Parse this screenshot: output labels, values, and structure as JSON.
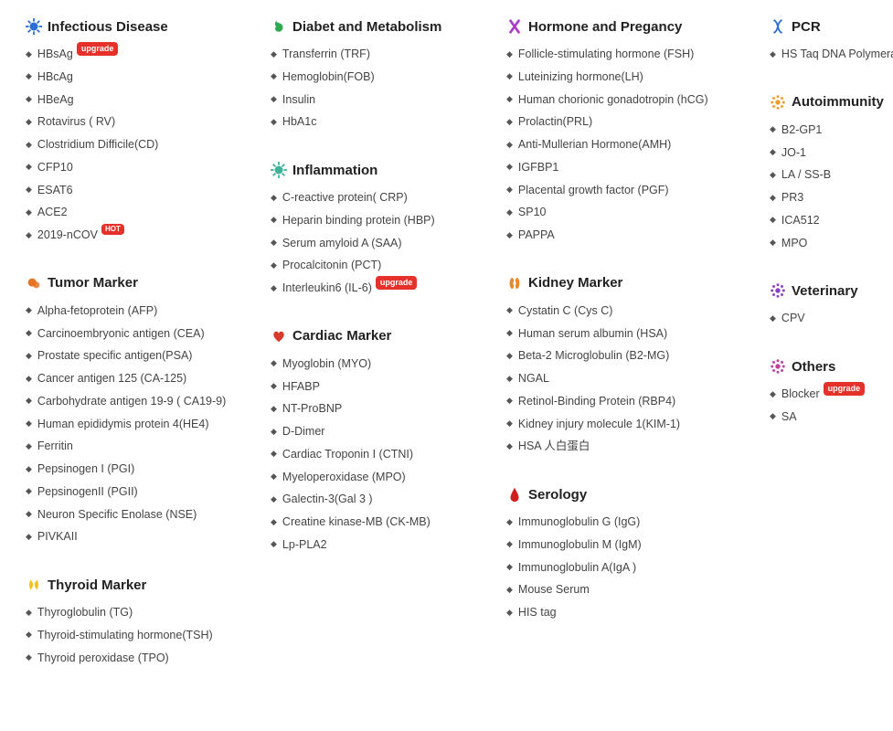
{
  "badges": {
    "upgrade": "upgrade",
    "hot": "HOT"
  },
  "columns": [
    [
      {
        "id": "infectious",
        "icon": "virus-blue",
        "title": "Infectious Disease",
        "items": [
          {
            "label": "HBsAg",
            "badge": "upgrade"
          },
          {
            "label": "HBcAg"
          },
          {
            "label": "HBeAg"
          },
          {
            "label": "Rotavirus ( RV)"
          },
          {
            "label": "Clostridium Difficile(CD)"
          },
          {
            "label": "CFP10"
          },
          {
            "label": "ESAT6"
          },
          {
            "label": "ACE2"
          },
          {
            "label": "2019-nCOV",
            "badge": "hot"
          }
        ]
      },
      {
        "id": "tumor",
        "icon": "tumor-orange",
        "title": "Tumor Marker",
        "items": [
          {
            "label": "Alpha-fetoprotein (AFP)"
          },
          {
            "label": "Carcinoembryonic antigen (CEA)"
          },
          {
            "label": "Prostate specific antigen(PSA)"
          },
          {
            "label": "Cancer antigen 125 (CA-125)"
          },
          {
            "label": "Carbohydrate antigen 19-9 ( CA19-9)"
          },
          {
            "label": "Human epididymis protein 4(HE4)"
          },
          {
            "label": "Ferritin"
          },
          {
            "label": "Pepsinogen I (PGI)"
          },
          {
            "label": "PepsinogenII (PGII)"
          },
          {
            "label": "Neuron Specific Enolase (NSE)"
          },
          {
            "label": "PIVKAII"
          }
        ]
      },
      {
        "id": "thyroid",
        "icon": "thyroid-yellow",
        "title": "Thyroid Marker",
        "items": [
          {
            "label": "Thyroglobulin (TG)"
          },
          {
            "label": "Thyroid-stimulating hormone(TSH)"
          },
          {
            "label": "Thyroid peroxidase (TPO)"
          }
        ]
      }
    ],
    [
      {
        "id": "diabet",
        "icon": "stomach-green",
        "title": "Diabet and Metabolism",
        "items": [
          {
            "label": "Transferrin (TRF)"
          },
          {
            "label": "Hemoglobin(FOB)"
          },
          {
            "label": "Insulin"
          },
          {
            "label": "HbA1c"
          }
        ]
      },
      {
        "id": "inflammation",
        "icon": "virus-teal",
        "title": "Inflammation",
        "items": [
          {
            "label": "C-reactive protein( CRP)"
          },
          {
            "label": "Heparin binding protein (HBP)"
          },
          {
            "label": "Serum amyloid A (SAA)"
          },
          {
            "label": "Procalcitonin (PCT)"
          },
          {
            "label": "Interleukin6 (IL-6)",
            "badge": "upgrade"
          }
        ]
      },
      {
        "id": "cardiac",
        "icon": "heart-red",
        "title": "Cardiac Marker",
        "items": [
          {
            "label": "Myoglobin (MYO)"
          },
          {
            "label": "HFABP"
          },
          {
            "label": "NT-ProBNP"
          },
          {
            "label": "D-Dimer"
          },
          {
            "label": "Cardiac Troponin I (CTNI)"
          },
          {
            "label": "Myeloperoxidase (MPO)"
          },
          {
            "label": "Galectin-3(Gal 3 )"
          },
          {
            "label": "Creatine kinase-MB (CK-MB)"
          },
          {
            "label": "Lp-PLA2"
          }
        ]
      }
    ],
    [
      {
        "id": "hormone",
        "icon": "chromosome-purple",
        "title": "Hormone and Pregancy",
        "items": [
          {
            "label": "Follicle-stimulating hormone (FSH)"
          },
          {
            "label": "Luteinizing hormone(LH)"
          },
          {
            "label": "Human chorionic gonadotropin (hCG)"
          },
          {
            "label": "Prolactin(PRL)"
          },
          {
            "label": "Anti-Mullerian Hormone(AMH)"
          },
          {
            "label": "IGFBP1"
          },
          {
            "label": "Placental growth factor (PGF)"
          },
          {
            "label": "SP10"
          },
          {
            "label": "PAPPA"
          }
        ]
      },
      {
        "id": "kidney",
        "icon": "kidneys-orange",
        "title": "Kidney Marker",
        "items": [
          {
            "label": "Cystatin C (Cys C)"
          },
          {
            "label": "Human serum albumin (HSA)"
          },
          {
            "label": "Beta-2 Microglobulin (B2-MG)"
          },
          {
            "label": "NGAL"
          },
          {
            "label": "Retinol-Binding Protein (RBP4)"
          },
          {
            "label": "Kidney injury molecule 1(KIM-1)"
          },
          {
            "label": "HSA 人白蛋白"
          }
        ]
      },
      {
        "id": "serology",
        "icon": "blood-red",
        "title": "Serology",
        "items": [
          {
            "label": "Immunoglobulin G (IgG)"
          },
          {
            "label": "Immunoglobulin M (IgM)"
          },
          {
            "label": "Immunoglobulin A(IgA )"
          },
          {
            "label": "Mouse Serum"
          },
          {
            "label": "HIS tag"
          }
        ]
      }
    ],
    [
      {
        "id": "pcr",
        "icon": "dna-blue",
        "title": "PCR",
        "items": [
          {
            "label": "HS Taq DNA Polymerase"
          }
        ]
      },
      {
        "id": "autoimmunity",
        "icon": "spark-orange",
        "title": "Autoimmunity",
        "items": [
          {
            "label": "B2-GP1"
          },
          {
            "label": "JO-1"
          },
          {
            "label": "LA / SS-B"
          },
          {
            "label": "PR3"
          },
          {
            "label": "ICA512"
          },
          {
            "label": "MPO"
          }
        ]
      },
      {
        "id": "veterinary",
        "icon": "spark-purple",
        "title": "Veterinary",
        "items": [
          {
            "label": "CPV"
          }
        ]
      },
      {
        "id": "others",
        "icon": "spark-magenta",
        "title": "Others",
        "items": [
          {
            "label": "Blocker",
            "badge": "upgrade"
          },
          {
            "label": "SA"
          }
        ]
      }
    ]
  ],
  "iconColors": {
    "virus-blue": "#2b6fd6",
    "tumor-orange": "#e67326",
    "thyroid-yellow": "#f2c21a",
    "stomach-green": "#2fa84f",
    "virus-teal": "#3fb39a",
    "heart-red": "#d93a2b",
    "chromosome-purple": "#a83fc4",
    "kidneys-orange": "#e38a2e",
    "blood-red": "#d01f1f",
    "dna-blue": "#2b6fd6",
    "spark-orange": "#f29b2b",
    "spark-purple": "#8a3fc4",
    "spark-magenta": "#c43f9b"
  }
}
